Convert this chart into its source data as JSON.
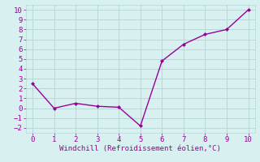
{
  "x": [
    0,
    1,
    2,
    3,
    4,
    5,
    6,
    7,
    8,
    9,
    10
  ],
  "y": [
    2.5,
    0.0,
    0.5,
    0.2,
    0.1,
    -1.8,
    4.8,
    6.5,
    7.5,
    8.0,
    10.0
  ],
  "line_color": "#990099",
  "marker": "D",
  "marker_size": 2.0,
  "line_width": 1.0,
  "xlabel": "Windchill (Refroidissement éolien,°C)",
  "xlabel_fontsize": 6.5,
  "xlabel_color": "#990099",
  "ylabel_ticks": [
    -2,
    -1,
    0,
    1,
    2,
    3,
    4,
    5,
    6,
    7,
    8,
    9,
    10
  ],
  "xticks": [
    0,
    1,
    2,
    3,
    4,
    5,
    6,
    7,
    8,
    9,
    10
  ],
  "xlim": [
    -0.3,
    10.3
  ],
  "ylim": [
    -2.5,
    10.5
  ],
  "background_color": "#d8f0f0",
  "grid_color": "#b8d8d8",
  "tick_fontsize": 6.5,
  "tick_color": "#990099"
}
